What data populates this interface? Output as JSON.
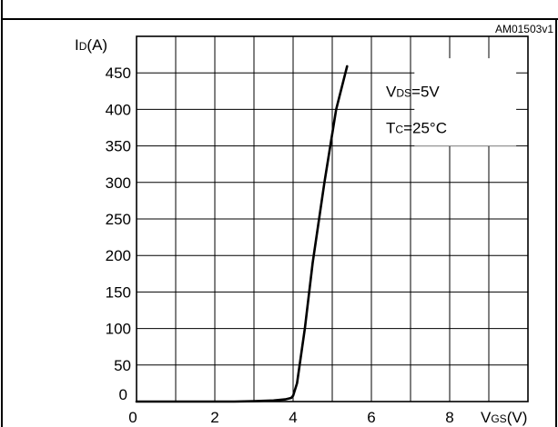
{
  "chart_data": {
    "type": "line",
    "figure_code": "AM01503v1",
    "ylabel": {
      "main": "I",
      "sub": "D",
      "unit": "(A)"
    },
    "xlabel": {
      "main": "V",
      "sub": "GS",
      "unit": "(V)"
    },
    "xlim": [
      0,
      10
    ],
    "ylim": [
      0,
      500
    ],
    "x_ticks": [
      0,
      2,
      4,
      6,
      8
    ],
    "y_ticks": [
      0,
      50,
      100,
      150,
      200,
      250,
      300,
      350,
      400,
      450
    ],
    "x_tick_labels": [
      "0",
      "2",
      "4",
      "6",
      "8"
    ],
    "y_tick_labels": [
      "0",
      "50",
      "100",
      "150",
      "200",
      "250",
      "300",
      "350",
      "400",
      "450"
    ],
    "grid": true,
    "conditions": [
      {
        "main": "V",
        "sub": "DS",
        "rest": "=5V"
      },
      {
        "main": "T",
        "sub": "C",
        "rest": "=25°C"
      }
    ],
    "series": [
      {
        "x": [
          0,
          2.5,
          3.0,
          3.5,
          3.8,
          3.95,
          4.0,
          4.1,
          4.3,
          4.5,
          4.8,
          5.1,
          5.38
        ],
        "y": [
          0,
          0,
          0.5,
          1.5,
          3,
          5,
          8,
          25,
          100,
          190,
          300,
          400,
          459
        ]
      }
    ]
  }
}
